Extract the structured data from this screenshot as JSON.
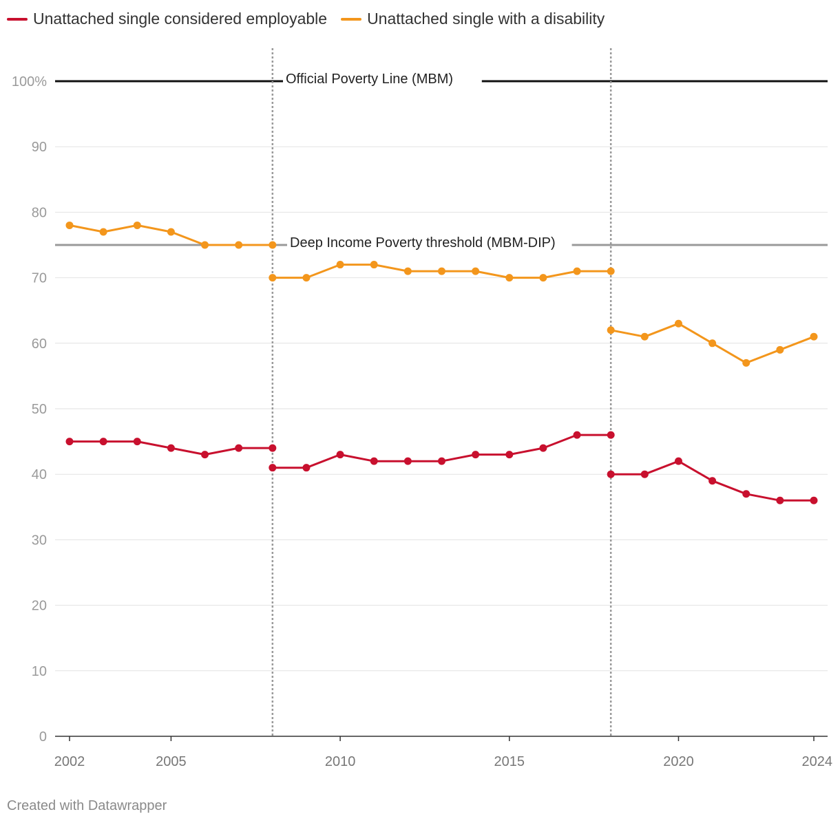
{
  "legend": {
    "series_a": "Unattached single considered employable",
    "series_b": "Unattached single with a disability"
  },
  "footer": {
    "credit": "Created with Datawrapper"
  },
  "chart_data": {
    "type": "line",
    "title": "",
    "xlabel": "",
    "ylabel": "",
    "x_ticks": [
      "2002",
      "2005",
      "2010",
      "2015",
      "2020",
      "2024"
    ],
    "y_ticks": [
      {
        "value": 0,
        "label": "0"
      },
      {
        "value": 10,
        "label": "10"
      },
      {
        "value": 20,
        "label": "20"
      },
      {
        "value": 30,
        "label": "30"
      },
      {
        "value": 40,
        "label": "40"
      },
      {
        "value": 50,
        "label": "50"
      },
      {
        "value": 60,
        "label": "60"
      },
      {
        "value": 70,
        "label": "70"
      },
      {
        "value": 80,
        "label": "80"
      },
      {
        "value": 90,
        "label": "90"
      },
      {
        "value": 100,
        "label": "100%"
      }
    ],
    "xlim": [
      2002,
      2024
    ],
    "ylim": [
      0,
      100
    ],
    "reference_lines": [
      {
        "value": 100,
        "label": "Official Poverty Line (MBM)",
        "color": "#111111"
      },
      {
        "value": 75,
        "label": "Deep Income Poverty threshold (MBM-DIP)",
        "color": "#9a9a9a"
      }
    ],
    "break_lines": [
      2008,
      2018
    ],
    "series": [
      {
        "name": "Unattached single considered employable",
        "color": "#c8102e",
        "segments": [
          [
            [
              2002,
              45
            ],
            [
              2003,
              45
            ],
            [
              2004,
              45
            ],
            [
              2005,
              44
            ],
            [
              2006,
              43
            ],
            [
              2007,
              44
            ],
            [
              2008,
              44
            ]
          ],
          [
            [
              2008,
              41
            ],
            [
              2009,
              41
            ],
            [
              2010,
              43
            ],
            [
              2011,
              42
            ],
            [
              2012,
              42
            ],
            [
              2013,
              42
            ],
            [
              2014,
              43
            ],
            [
              2015,
              43
            ],
            [
              2016,
              44
            ],
            [
              2017,
              46
            ],
            [
              2018,
              46
            ]
          ],
          [
            [
              2018,
              40
            ],
            [
              2019,
              40
            ],
            [
              2020,
              42
            ],
            [
              2021,
              39
            ],
            [
              2022,
              37
            ],
            [
              2023,
              36
            ],
            [
              2024,
              36
            ]
          ]
        ]
      },
      {
        "name": "Unattached single with a disability",
        "color": "#f3961c",
        "segments": [
          [
            [
              2002,
              78
            ],
            [
              2003,
              77
            ],
            [
              2004,
              78
            ],
            [
              2005,
              77
            ],
            [
              2006,
              75
            ],
            [
              2007,
              75
            ],
            [
              2008,
              75
            ]
          ],
          [
            [
              2008,
              70
            ],
            [
              2009,
              70
            ],
            [
              2010,
              72
            ],
            [
              2011,
              72
            ],
            [
              2012,
              71
            ],
            [
              2013,
              71
            ],
            [
              2014,
              71
            ],
            [
              2015,
              70
            ],
            [
              2016,
              70
            ],
            [
              2017,
              71
            ],
            [
              2018,
              71
            ]
          ],
          [
            [
              2018,
              62
            ],
            [
              2019,
              61
            ],
            [
              2020,
              63
            ],
            [
              2021,
              60
            ],
            [
              2022,
              57
            ],
            [
              2023,
              59
            ],
            [
              2024,
              61
            ]
          ]
        ]
      }
    ]
  }
}
